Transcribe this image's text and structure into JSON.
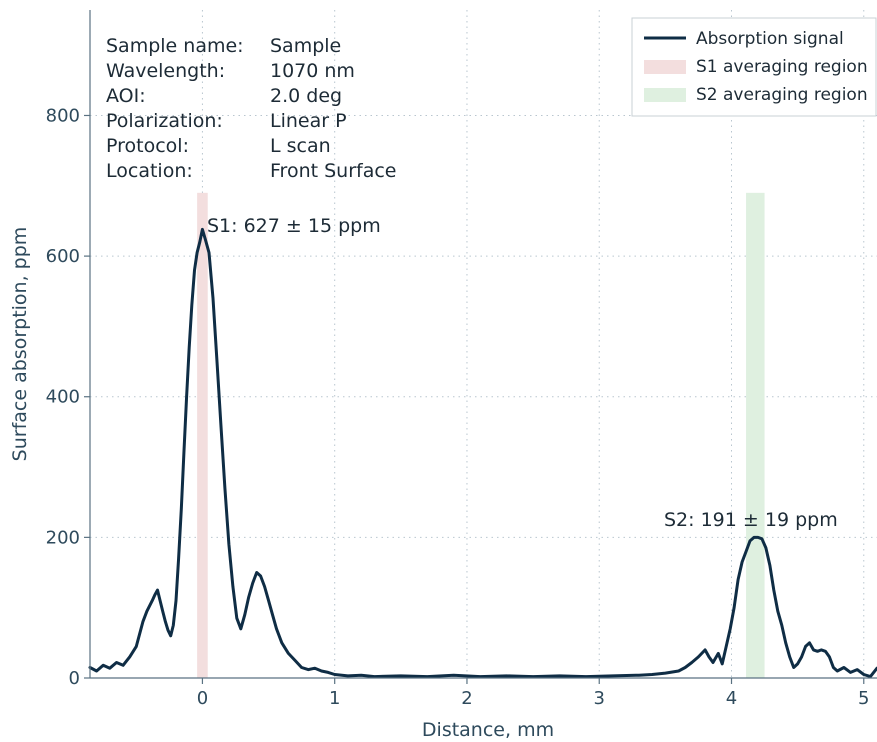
{
  "chart_data": {
    "type": "line",
    "xlabel": "Distance, mm",
    "ylabel": "Surface absorption, ppm",
    "xlim": [
      -0.85,
      5.1
    ],
    "ylim": [
      0,
      950
    ],
    "x_ticks": [
      0,
      1,
      2,
      3,
      4,
      5
    ],
    "y_ticks": [
      0,
      200,
      400,
      600,
      800
    ],
    "grid": "dotted horizontal and vertical",
    "legend_position": "top-right",
    "series": [
      {
        "name": "Absorption signal",
        "color": "#0f2d45",
        "points": [
          [
            -0.85,
            15
          ],
          [
            -0.8,
            10
          ],
          [
            -0.75,
            18
          ],
          [
            -0.7,
            14
          ],
          [
            -0.65,
            22
          ],
          [
            -0.6,
            18
          ],
          [
            -0.55,
            30
          ],
          [
            -0.5,
            45
          ],
          [
            -0.45,
            80
          ],
          [
            -0.42,
            95
          ],
          [
            -0.38,
            110
          ],
          [
            -0.36,
            118
          ],
          [
            -0.34,
            125
          ],
          [
            -0.32,
            110
          ],
          [
            -0.3,
            95
          ],
          [
            -0.28,
            80
          ],
          [
            -0.26,
            68
          ],
          [
            -0.24,
            60
          ],
          [
            -0.22,
            75
          ],
          [
            -0.2,
            110
          ],
          [
            -0.18,
            170
          ],
          [
            -0.16,
            240
          ],
          [
            -0.14,
            320
          ],
          [
            -0.12,
            400
          ],
          [
            -0.1,
            470
          ],
          [
            -0.08,
            530
          ],
          [
            -0.06,
            580
          ],
          [
            -0.04,
            605
          ],
          [
            -0.02,
            620
          ],
          [
            0.0,
            638
          ],
          [
            0.02,
            625
          ],
          [
            0.05,
            605
          ],
          [
            0.08,
            540
          ],
          [
            0.11,
            450
          ],
          [
            0.14,
            360
          ],
          [
            0.17,
            270
          ],
          [
            0.2,
            190
          ],
          [
            0.23,
            130
          ],
          [
            0.26,
            85
          ],
          [
            0.29,
            70
          ],
          [
            0.32,
            90
          ],
          [
            0.35,
            115
          ],
          [
            0.38,
            135
          ],
          [
            0.41,
            150
          ],
          [
            0.44,
            145
          ],
          [
            0.47,
            130
          ],
          [
            0.5,
            110
          ],
          [
            0.53,
            90
          ],
          [
            0.56,
            70
          ],
          [
            0.6,
            50
          ],
          [
            0.65,
            35
          ],
          [
            0.7,
            25
          ],
          [
            0.75,
            15
          ],
          [
            0.8,
            12
          ],
          [
            0.85,
            14
          ],
          [
            0.9,
            10
          ],
          [
            0.95,
            8
          ],
          [
            1.0,
            5
          ],
          [
            1.1,
            3
          ],
          [
            1.2,
            4
          ],
          [
            1.3,
            2
          ],
          [
            1.5,
            3
          ],
          [
            1.7,
            2
          ],
          [
            1.9,
            4
          ],
          [
            2.1,
            2
          ],
          [
            2.3,
            3
          ],
          [
            2.5,
            2
          ],
          [
            2.7,
            3
          ],
          [
            2.9,
            2
          ],
          [
            3.1,
            3
          ],
          [
            3.3,
            4
          ],
          [
            3.4,
            5
          ],
          [
            3.5,
            7
          ],
          [
            3.6,
            10
          ],
          [
            3.65,
            15
          ],
          [
            3.7,
            22
          ],
          [
            3.75,
            30
          ],
          [
            3.8,
            40
          ],
          [
            3.83,
            30
          ],
          [
            3.86,
            22
          ],
          [
            3.9,
            35
          ],
          [
            3.93,
            20
          ],
          [
            3.96,
            45
          ],
          [
            3.99,
            70
          ],
          [
            4.02,
            100
          ],
          [
            4.05,
            140
          ],
          [
            4.08,
            165
          ],
          [
            4.11,
            180
          ],
          [
            4.14,
            195
          ],
          [
            4.17,
            200
          ],
          [
            4.2,
            200
          ],
          [
            4.23,
            198
          ],
          [
            4.26,
            185
          ],
          [
            4.29,
            160
          ],
          [
            4.32,
            125
          ],
          [
            4.35,
            95
          ],
          [
            4.38,
            75
          ],
          [
            4.41,
            50
          ],
          [
            4.44,
            30
          ],
          [
            4.47,
            15
          ],
          [
            4.5,
            20
          ],
          [
            4.53,
            30
          ],
          [
            4.56,
            45
          ],
          [
            4.59,
            50
          ],
          [
            4.62,
            40
          ],
          [
            4.65,
            38
          ],
          [
            4.68,
            40
          ],
          [
            4.71,
            38
          ],
          [
            4.74,
            30
          ],
          [
            4.77,
            15
          ],
          [
            4.8,
            10
          ],
          [
            4.85,
            15
          ],
          [
            4.9,
            8
          ],
          [
            4.95,
            12
          ],
          [
            5.0,
            5
          ],
          [
            5.05,
            2
          ],
          [
            5.1,
            14
          ]
        ]
      }
    ],
    "regions": [
      {
        "name": "S1 averaging region",
        "color": "#f3dede",
        "x_start": -0.04,
        "x_end": 0.04,
        "y_max": 690
      },
      {
        "name": "S2 averaging region",
        "color": "#dff0e0",
        "x_start": 4.11,
        "x_end": 4.25,
        "y_max": 690
      }
    ],
    "annotations": [
      {
        "text": "S1: 627 ± 15 ppm",
        "x": 0.04,
        "y": 650
      },
      {
        "text": "S2: 191 ± 19 ppm",
        "x": 3.48,
        "y": 225
      }
    ],
    "info_block": [
      {
        "label": "Sample name:",
        "value": "Sample"
      },
      {
        "label": "Wavelength:",
        "value": "1070 nm"
      },
      {
        "label": "AOI:",
        "value": "2.0 deg"
      },
      {
        "label": "Polarization:",
        "value": "Linear P"
      },
      {
        "label": "Protocol:",
        "value": "L scan"
      },
      {
        "label": "Location:",
        "value": "Front Surface"
      }
    ]
  }
}
